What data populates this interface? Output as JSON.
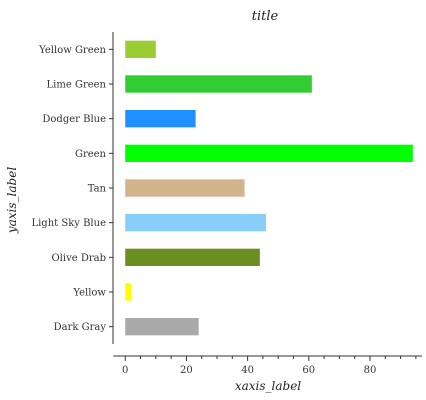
{
  "chart_data": {
    "type": "bar",
    "orientation": "horizontal",
    "title": "title",
    "xlabel": "xaxis_label",
    "ylabel": "yaxis_label",
    "categories": [
      "Dark Gray",
      "Yellow",
      "Olive Drab",
      "Light Sky Blue",
      "Tan",
      "Green",
      "Dodger Blue",
      "Lime Green",
      "Yellow Green"
    ],
    "values": [
      24,
      2,
      44,
      46,
      39,
      94,
      23,
      61,
      10
    ],
    "colors": [
      "#a9a9a9",
      "#ffff00",
      "#6b8e23",
      "#87cefa",
      "#d2b48c",
      "#00ff00",
      "#1e90ff",
      "#32cd32",
      "#9acd32"
    ],
    "xticks": [
      0,
      20,
      40,
      60,
      80
    ],
    "xlim": [
      -4,
      97
    ],
    "grid": false,
    "legend": "none"
  }
}
